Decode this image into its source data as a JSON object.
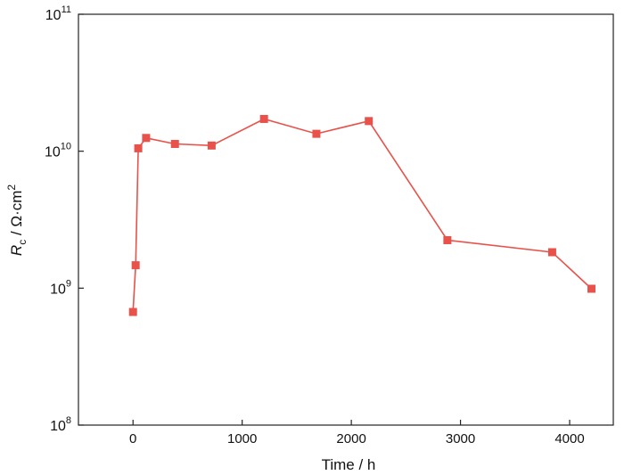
{
  "chart_data": {
    "type": "line",
    "xlabel": "Time / h",
    "ylabel": {
      "symbol": "R",
      "subscript": "c",
      "unit": " / Ω·cm",
      "superscript": "2"
    },
    "xlim": [
      -500,
      4400
    ],
    "ylim": [
      100000000,
      100000000000
    ],
    "y_scale": "log",
    "x_ticks": [
      0,
      1000,
      2000,
      3000,
      4000
    ],
    "x_tick_labels": [
      "0",
      "1000",
      "2000",
      "3000",
      "4000"
    ],
    "y_ticks": [
      {
        "value": 100000000,
        "base": "10",
        "exponent": "8"
      },
      {
        "value": 1000000000,
        "base": "10",
        "exponent": "9"
      },
      {
        "value": 10000000000,
        "base": "10",
        "exponent": "10"
      },
      {
        "value": 100000000000,
        "base": "10",
        "exponent": "11"
      }
    ],
    "grid": false,
    "series": [
      {
        "color": "#e8524a",
        "marker": "square",
        "points": [
          {
            "x": 0,
            "y": 670000000
          },
          {
            "x": 24,
            "y": 1470000000
          },
          {
            "x": 48,
            "y": 10500000000
          },
          {
            "x": 120,
            "y": 12500000000
          },
          {
            "x": 384,
            "y": 11300000000
          },
          {
            "x": 720,
            "y": 11000000000
          },
          {
            "x": 1200,
            "y": 17200000000
          },
          {
            "x": 1680,
            "y": 13400000000
          },
          {
            "x": 2160,
            "y": 16600000000
          },
          {
            "x": 2880,
            "y": 2240000000
          },
          {
            "x": 3840,
            "y": 1830000000
          },
          {
            "x": 4200,
            "y": 990000000
          }
        ]
      }
    ]
  }
}
